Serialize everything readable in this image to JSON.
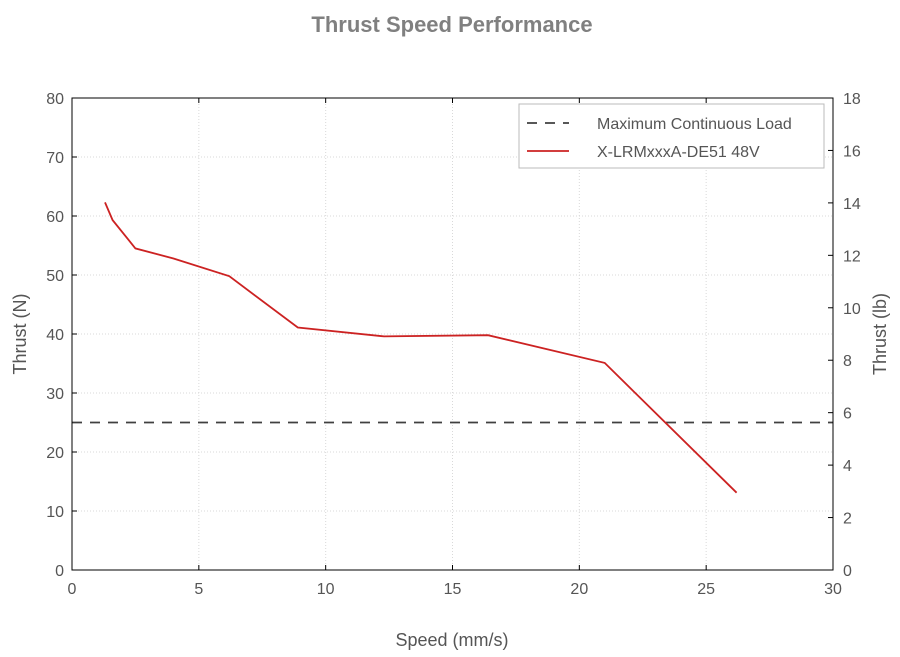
{
  "chart_data": {
    "type": "line",
    "title": "Thrust Speed Performance",
    "xlabel": "Speed (mm/s)",
    "ylabel": "Thrust (N)",
    "y2label": "Thrust (lb)",
    "xlim": [
      0,
      30
    ],
    "ylim": [
      0,
      80
    ],
    "y2lim": [
      0,
      18
    ],
    "xticks": [
      "0",
      "5",
      "10",
      "15",
      "20",
      "25",
      "30"
    ],
    "yticks": [
      "0",
      "10",
      "20",
      "30",
      "40",
      "50",
      "60",
      "70",
      "80"
    ],
    "y2ticks": [
      "0",
      "2",
      "4",
      "6",
      "8",
      "10",
      "12",
      "14",
      "16",
      "18"
    ],
    "grid": true,
    "legend_position": "top-right",
    "series": [
      {
        "name": "Maximum Continuous Load",
        "style": "dashed",
        "color": "#404040",
        "x": [
          0,
          30
        ],
        "y": [
          25,
          25
        ]
      },
      {
        "name": "X-LRMxxxA-DE51 48V",
        "style": "solid",
        "color": "#cc2222",
        "x": [
          1.3,
          1.6,
          2.5,
          4.0,
          6.2,
          8.9,
          12.3,
          16.4,
          21.0,
          26.2
        ],
        "y": [
          62.3,
          59.3,
          54.5,
          52.8,
          49.8,
          41.1,
          39.6,
          39.8,
          35.1,
          13.1
        ]
      }
    ]
  }
}
